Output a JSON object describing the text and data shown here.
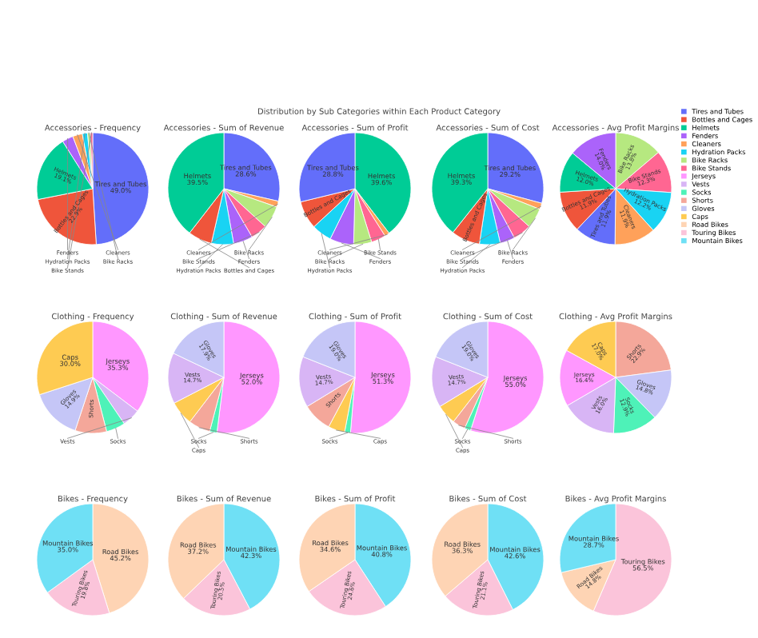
{
  "chart_data": [
    {
      "type": "pie",
      "title": "Accessories - Frequency",
      "legend": "right",
      "annotations": [
        "Distribution by Sub Categories within Each Product Category"
      ],
      "categories": [
        "Tires and Tubes",
        "Bottles and Cages",
        "Helmets",
        "Fenders",
        "Cleaners",
        "Hydration Packs",
        "Bike Racks",
        "Bike Stands"
      ],
      "values": [
        49.0,
        22.9,
        19.1,
        3.2,
        2.8,
        1.5,
        0.8,
        0.7
      ],
      "colors": [
        "#636efa",
        "#ef553b",
        "#00cc96",
        "#ab63fa",
        "#ffa15a",
        "#19d3f3",
        "#b6e880",
        "#ff6692"
      ],
      "value_labels": [
        "49.0%",
        "22.9%",
        "19.1%",
        null,
        null,
        null,
        null,
        null
      ]
    },
    {
      "type": "pie",
      "title": "Accessories - Sum of Revenue",
      "categories": [
        "Tires and Tubes",
        "Cleaners",
        "Bike Racks",
        "Bike Stands",
        "Fenders",
        "Hydration Packs",
        "Bottles and Cages",
        "Helmets"
      ],
      "values": [
        28.6,
        1.7,
        6.5,
        4.8,
        5.6,
        6.4,
        6.9,
        39.5
      ],
      "colors": [
        "#636efa",
        "#ffa15a",
        "#b6e880",
        "#ff6692",
        "#ab63fa",
        "#19d3f3",
        "#ef553b",
        "#00cc96"
      ],
      "value_labels": [
        "28.6%",
        null,
        null,
        null,
        null,
        null,
        null,
        "39.5%"
      ]
    },
    {
      "type": "pie",
      "title": "Accessories - Sum of Profit",
      "categories": [
        "Helmets",
        "Cleaners",
        "Bike Stands",
        "Bike Racks",
        "Fenders",
        "Hydration Packs",
        "Bottles and Cages",
        "Tires and Tubes"
      ],
      "values": [
        39.6,
        1.4,
        4.2,
        5.2,
        6.9,
        5.8,
        8.1,
        28.8
      ],
      "colors": [
        "#00cc96",
        "#ffa15a",
        "#ff6692",
        "#b6e880",
        "#ab63fa",
        "#19d3f3",
        "#ef553b",
        "#636efa"
      ],
      "value_labels": [
        "39.6%",
        null,
        null,
        null,
        null,
        null,
        null,
        "28.8%"
      ]
    },
    {
      "type": "pie",
      "title": "Accessories - Sum of Cost",
      "categories": [
        "Tires and Tubes",
        "Cleaners",
        "Bike Racks",
        "Bike Stands",
        "Fenders",
        "Hydration Packs",
        "Bottles and Cages",
        "Helmets"
      ],
      "values": [
        29.2,
        1.8,
        5.8,
        5.3,
        4.3,
        6.0,
        8.3,
        39.3
      ],
      "colors": [
        "#636efa",
        "#ffa15a",
        "#b6e880",
        "#ff6692",
        "#ab63fa",
        "#19d3f3",
        "#ef553b",
        "#00cc96"
      ],
      "value_labels": [
        "29.2%",
        null,
        null,
        null,
        null,
        null,
        null,
        "39.3%"
      ]
    },
    {
      "type": "pie",
      "title": "Accessories - Avg Profit Margins",
      "categories": [
        "Bike Racks",
        "Bike Stands",
        "Hydration Packs",
        "Cleaners",
        "Tires and Tubes",
        "Bottles and Cages",
        "Helmets",
        "Fenders"
      ],
      "values": [
        13.8,
        12.3,
        12.2,
        11.9,
        11.9,
        11.9,
        12.0,
        14.0
      ],
      "colors": [
        "#b6e880",
        "#ff6692",
        "#19d3f3",
        "#ffa15a",
        "#636efa",
        "#ef553b",
        "#00cc96",
        "#ab63fa"
      ],
      "value_labels": [
        "13.8%",
        "12.3%",
        "12.2%",
        "11.9%",
        "11.9%",
        "11.9%",
        "12.0%",
        "14.0%"
      ]
    },
    {
      "type": "pie",
      "title": "Clothing - Frequency",
      "legend": "right",
      "categories": [
        "Jerseys",
        "Vests",
        "Socks",
        "Shorts",
        "Gloves",
        "Caps"
      ],
      "values": [
        35.3,
        5.2,
        5.5,
        9.1,
        14.9,
        30.0
      ],
      "colors": [
        "#ff97ff",
        "#d8b5f5",
        "#4ef2b8",
        "#f4a79a",
        "#c5c6f7",
        "#fecb52"
      ],
      "value_labels": [
        "35.3%",
        null,
        null,
        null,
        "14.9%",
        "30.0%"
      ]
    },
    {
      "type": "pie",
      "title": "Clothing - Sum of Revenue",
      "categories": [
        "Jerseys",
        "Socks",
        "Shorts",
        "Caps",
        "Vests",
        "Gloves"
      ],
      "values": [
        52.0,
        2.1,
        6.3,
        7.0,
        14.7,
        17.9
      ],
      "colors": [
        "#ff97ff",
        "#4ef2b8",
        "#f4a79a",
        "#fecb52",
        "#d8b5f5",
        "#c5c6f7"
      ],
      "value_labels": [
        "52.0%",
        null,
        null,
        null,
        "14.7%",
        "17.9%"
      ]
    },
    {
      "type": "pie",
      "title": "Clothing - Sum of Profit",
      "categories": [
        "Jerseys",
        "Socks",
        "Caps",
        "Shorts",
        "Vests",
        "Gloves"
      ],
      "values": [
        51.3,
        1.7,
        4.8,
        8.5,
        14.7,
        19.0
      ],
      "colors": [
        "#ff97ff",
        "#4ef2b8",
        "#fecb52",
        "#f4a79a",
        "#d8b5f5",
        "#c5c6f7"
      ],
      "value_labels": [
        "51.3%",
        null,
        null,
        null,
        "14.7%",
        "19.0%"
      ]
    },
    {
      "type": "pie",
      "title": "Clothing - Sum of Cost",
      "categories": [
        "Jerseys",
        "Socks",
        "Shorts",
        "Caps",
        "Vests",
        "Gloves"
      ],
      "values": [
        55.0,
        1.8,
        3.7,
        5.8,
        14.7,
        19.0
      ],
      "colors": [
        "#ff97ff",
        "#4ef2b8",
        "#f4a79a",
        "#fecb52",
        "#d8b5f5",
        "#c5c6f7"
      ],
      "value_labels": [
        "55.0%",
        null,
        null,
        null,
        "14.7%",
        "19.0%"
      ]
    },
    {
      "type": "pie",
      "title": "Clothing - Avg Profit Margins",
      "categories": [
        "Shorts",
        "Gloves",
        "Socks",
        "Vests",
        "Jerseys",
        "Caps"
      ],
      "values": [
        22.9,
        14.8,
        12.9,
        16.0,
        16.4,
        17.0
      ],
      "colors": [
        "#f4a79a",
        "#c5c6f7",
        "#4ef2b8",
        "#d8b5f5",
        "#ff97ff",
        "#fecb52"
      ],
      "value_labels": [
        "22.9%",
        "14.8%",
        "12.9%",
        "16.0%",
        "16.4%",
        "17.0%"
      ]
    },
    {
      "type": "pie",
      "title": "Bikes - Frequency",
      "legend": "right",
      "categories": [
        "Road Bikes",
        "Touring Bikes",
        "Mountain Bikes"
      ],
      "values": [
        45.2,
        19.8,
        35.0
      ],
      "colors": [
        "#fed4b4",
        "#fbc4da",
        "#6fe0f5"
      ],
      "value_labels": [
        "45.2%",
        "19.8%",
        "35.0%"
      ]
    },
    {
      "type": "pie",
      "title": "Bikes - Sum of Revenue",
      "categories": [
        "Mountain Bikes",
        "Touring Bikes",
        "Road Bikes"
      ],
      "values": [
        42.3,
        20.5,
        37.2
      ],
      "colors": [
        "#6fe0f5",
        "#fbc4da",
        "#fed4b4"
      ],
      "value_labels": [
        "42.3%",
        "20.5%",
        "37.2%"
      ]
    },
    {
      "type": "pie",
      "title": "Bikes - Sum of Profit",
      "categories": [
        "Mountain Bikes",
        "Touring Bikes",
        "Road Bikes"
      ],
      "values": [
        40.8,
        24.6,
        34.6
      ],
      "colors": [
        "#6fe0f5",
        "#fbc4da",
        "#fed4b4"
      ],
      "value_labels": [
        "40.8%",
        "24.6%",
        "34.6%"
      ]
    },
    {
      "type": "pie",
      "title": "Bikes - Sum of Cost",
      "categories": [
        "Mountain Bikes",
        "Touring Bikes",
        "Road Bikes"
      ],
      "values": [
        42.6,
        21.1,
        36.3
      ],
      "colors": [
        "#6fe0f5",
        "#fbc4da",
        "#fed4b4"
      ],
      "value_labels": [
        "42.6%",
        "21.1%",
        "36.3%"
      ]
    },
    {
      "type": "pie",
      "title": "Bikes - Avg Profit Margins",
      "categories": [
        "Touring Bikes",
        "Road Bikes",
        "Mountain Bikes"
      ],
      "values": [
        56.5,
        14.8,
        28.7
      ],
      "colors": [
        "#fbc4da",
        "#fed4b4",
        "#6fe0f5"
      ],
      "value_labels": [
        "56.5%",
        "14.8%",
        "28.7%"
      ]
    }
  ]
}
